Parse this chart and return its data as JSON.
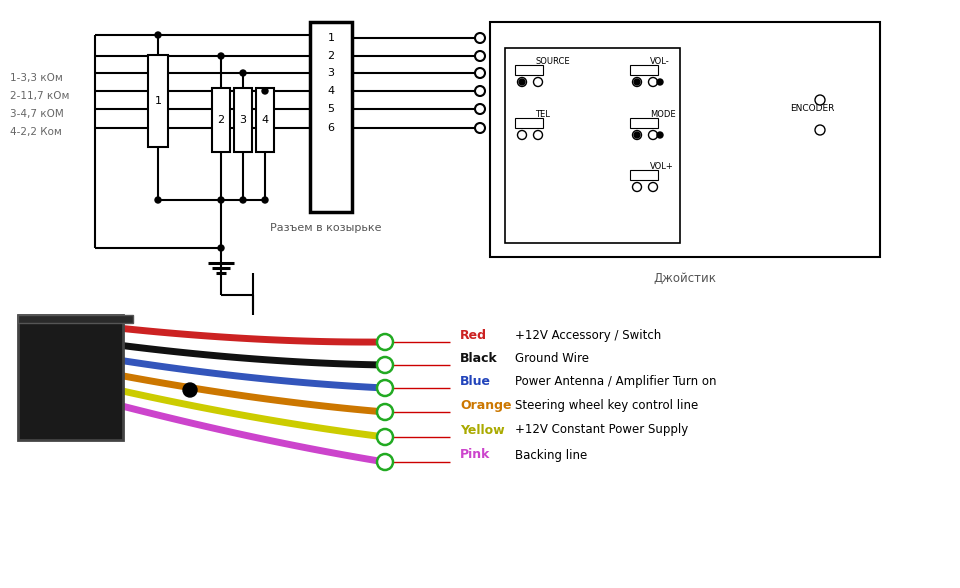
{
  "bg_color": "#ffffff",
  "resistor_labels": [
    "1-3,3 кОм",
    "2-11,7 кОм",
    "3-4,7 кОМ",
    "4-2,2 Ком"
  ],
  "connector_label": "Разъем в козырьке",
  "joystick_label": "Джойстик",
  "connector_pins": [
    "1",
    "2",
    "3",
    "4",
    "5",
    "6"
  ],
  "wire_labels": [
    "Red",
    "Black",
    "Blue",
    "Orange",
    "Yellow",
    "Pink"
  ],
  "wire_colors": [
    "#cc2222",
    "#111111",
    "#2244bb",
    "#cc7700",
    "#cccc00",
    "#cc44cc"
  ],
  "wire_descriptions": [
    "+12V Accessory / Switch",
    "Ground Wire",
    "Power Antenna / Amplifier Turn on",
    "Steering wheel key control line",
    "+12V Constant Power Supply",
    "Backing line"
  ],
  "label_colors": [
    "#cc2222",
    "#111111",
    "#2244bb",
    "#cc7700",
    "#aaaa00",
    "#cc44cc"
  ],
  "line_color": "#000000",
  "gray_line_color": "#888888"
}
